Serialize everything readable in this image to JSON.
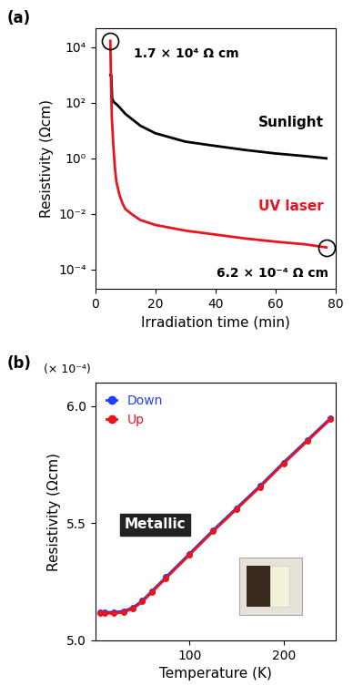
{
  "chart_data": [
    {
      "type": "line",
      "panel_label": "(a)",
      "x_label": "Irradiation time (min)",
      "y_label": "Resistivity (Ωcm)",
      "log": "y",
      "xlim": [
        0,
        80
      ],
      "xticks": [
        0,
        20,
        40,
        60,
        80
      ],
      "ylim": [
        2e-05,
        50000
      ],
      "yticks": [
        {
          "value": 10000,
          "label": "10⁴"
        },
        {
          "value": 100,
          "label": "10²"
        },
        {
          "value": 1,
          "label": "10⁰"
        },
        {
          "value": 0.01,
          "label": "10⁻²"
        },
        {
          "value": 0.0001,
          "label": "10⁻⁴"
        }
      ],
      "series": [
        {
          "name": "Sunlight",
          "color": "#000000",
          "x": [
            5,
            5.3,
            5.6,
            6,
            7,
            8,
            10,
            15,
            20,
            30,
            40,
            50,
            60,
            70,
            77
          ],
          "values": [
            1000,
            1000,
            150,
            110,
            90,
            70,
            40,
            15,
            8,
            4,
            2.8,
            2,
            1.5,
            1.2,
            1.0
          ]
        },
        {
          "name": "UV laser",
          "color": "#e8141e",
          "x": [
            5,
            5.2,
            5.5,
            6,
            6.5,
            7,
            8,
            9,
            10,
            12,
            15,
            20,
            30,
            40,
            50,
            60,
            70,
            77
          ],
          "values": [
            17000,
            1000,
            30,
            3,
            0.5,
            0.15,
            0.05,
            0.025,
            0.015,
            0.01,
            0.006,
            0.004,
            0.0025,
            0.0018,
            0.0013,
            0.001,
            0.0008,
            0.00062
          ]
        }
      ],
      "annotations": [
        "1.7 × 10⁴ Ω cm",
        "6.2 × 10⁻⁴ Ω cm"
      ]
    },
    {
      "type": "line",
      "panel_label": "(b)",
      "x_label": "Temperature (K)",
      "y_label": "Resistivity (Ωcm)",
      "xlim": [
        0,
        255
      ],
      "xticks": [
        100,
        200
      ],
      "ylim": [
        5.0,
        6.1
      ],
      "yticks": [
        5.0,
        5.5,
        6.0
      ],
      "legend": "upper left",
      "series": [
        {
          "name": "Down",
          "color": "#1f3fff",
          "marker": "o",
          "x": [
            5,
            10,
            20,
            30,
            40,
            50,
            60,
            75,
            100,
            125,
            150,
            175,
            200,
            225,
            250
          ],
          "values": [
            5.12,
            5.12,
            5.12,
            5.125,
            5.14,
            5.17,
            5.21,
            5.27,
            5.37,
            5.47,
            5.565,
            5.66,
            5.76,
            5.855,
            5.95
          ]
        },
        {
          "name": "Up",
          "color": "#e8141e",
          "marker": "o",
          "x": [
            5,
            10,
            20,
            30,
            40,
            50,
            60,
            75,
            100,
            125,
            150,
            175,
            200,
            225,
            250
          ],
          "values": [
            5.115,
            5.115,
            5.115,
            5.12,
            5.135,
            5.165,
            5.205,
            5.265,
            5.365,
            5.465,
            5.56,
            5.655,
            5.755,
            5.85,
            5.945
          ]
        }
      ],
      "annotations": [
        "(× 10⁻⁴)",
        "Metallic"
      ]
    }
  ]
}
